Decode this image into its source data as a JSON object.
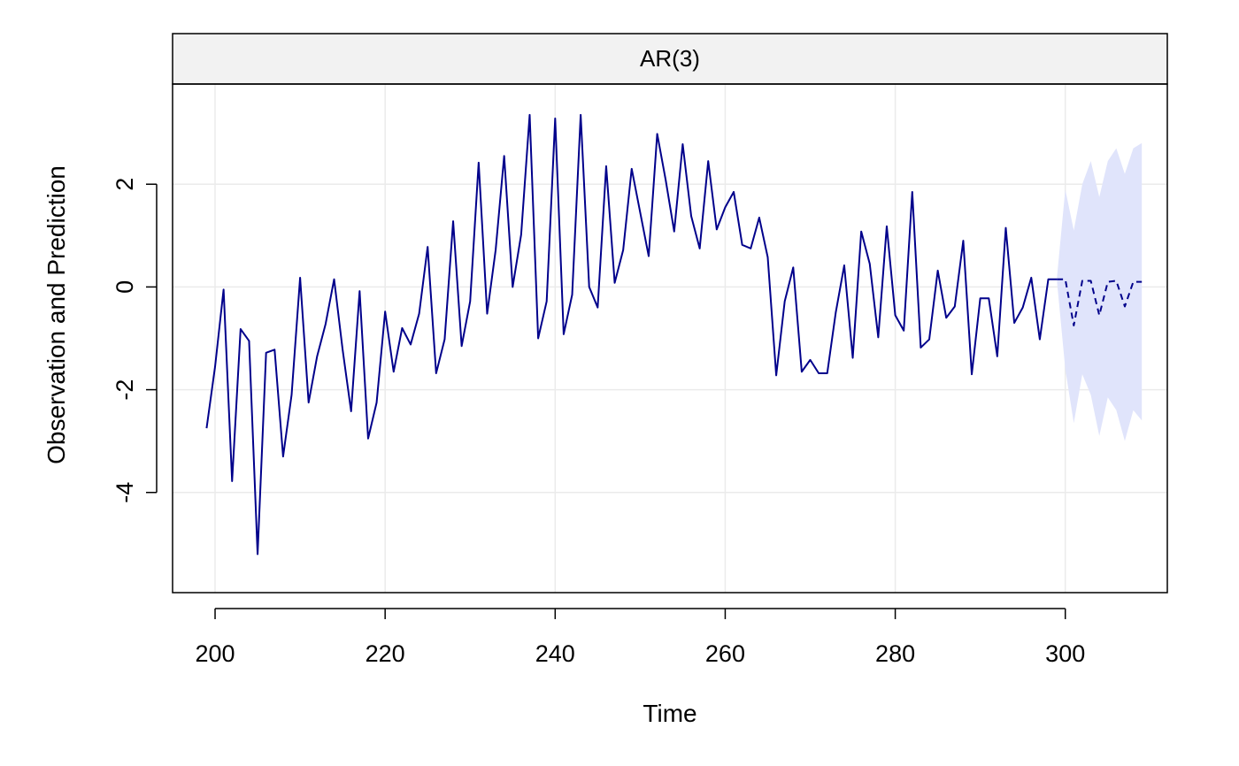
{
  "chart_data": {
    "type": "line",
    "title": "AR(3)",
    "xlabel": "Time",
    "ylabel": "Observation and Prediction",
    "xlim": [
      195,
      312
    ],
    "ylim": [
      -5.95,
      3.95
    ],
    "x_ticks": [
      200,
      220,
      240,
      260,
      280,
      300
    ],
    "y_ticks": [
      -4,
      -2,
      0,
      2
    ],
    "grid": true,
    "colors": {
      "observed": "#00008B",
      "forecast": "#00008B",
      "interval": "#E0E4FB",
      "grid": "#EBEBEB",
      "strip": "#F2F2F2"
    },
    "series": [
      {
        "style": "solid",
        "x_start": 199,
        "values": [
          -2.75,
          -1.55,
          -0.05,
          -3.78,
          -0.82,
          -1.05,
          -5.2,
          -1.28,
          -1.22,
          -3.3,
          -2.1,
          0.18,
          -2.25,
          -1.35,
          -0.72,
          0.15,
          -1.22,
          -2.42,
          -0.08,
          -2.95,
          -2.25,
          -0.48,
          -1.65,
          -0.8,
          -1.12,
          -0.52,
          0.78,
          -1.68,
          -1.02,
          1.28,
          -1.15,
          -0.28,
          2.42,
          -0.52,
          0.72,
          2.55,
          0.0,
          1.02,
          3.35,
          -1.0,
          -0.28,
          3.28,
          -0.92,
          -0.15,
          3.35,
          0.0,
          -0.4,
          2.35,
          0.08,
          0.72,
          2.3,
          1.45,
          0.6,
          2.98,
          2.08,
          1.08,
          2.78,
          1.38,
          0.75,
          2.45,
          1.12,
          1.55,
          1.85,
          0.82,
          0.75,
          1.35,
          0.58,
          -1.72,
          -0.28,
          0.38,
          -1.65,
          -1.42,
          -1.68,
          -1.68,
          -0.5,
          0.42,
          -1.38,
          1.08,
          0.45,
          -0.98,
          1.18,
          -0.55,
          -0.85,
          1.85,
          -1.18,
          -1.02,
          0.32,
          -0.6,
          -0.38,
          0.9,
          -1.7,
          -0.22,
          -0.22,
          -1.35,
          1.15,
          -0.7,
          -0.4,
          0.18,
          -1.02,
          0.15,
          0.15
        ]
      },
      {
        "style": "dashed",
        "x_start": 299,
        "values": [
          0.15,
          0.15,
          -0.75,
          0.12,
          0.12,
          -0.55,
          0.1,
          0.12,
          -0.38,
          0.1,
          0.1
        ]
      }
    ],
    "interval": {
      "x_start": 299,
      "upper": [
        0.15,
        1.9,
        1.1,
        2.0,
        2.45,
        1.75,
        2.45,
        2.7,
        2.2,
        2.7,
        2.8
      ],
      "lower": [
        0.15,
        -1.6,
        -2.65,
        -1.7,
        -2.1,
        -2.9,
        -2.15,
        -2.4,
        -3.0,
        -2.4,
        -2.6
      ]
    }
  }
}
